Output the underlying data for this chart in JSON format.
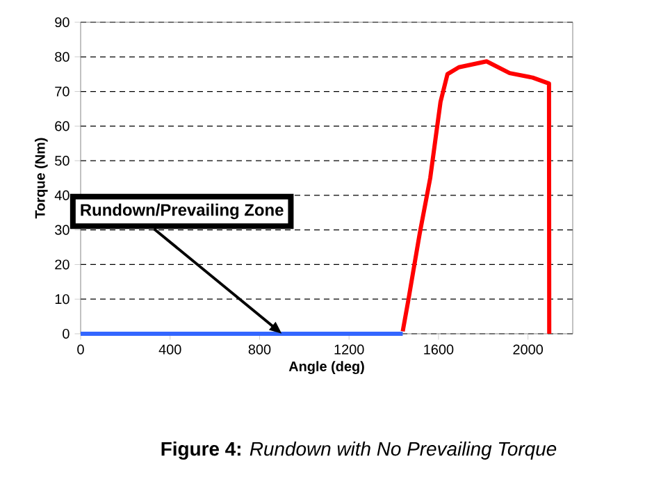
{
  "chart_data": {
    "type": "line",
    "xlabel": "Angle (deg)",
    "ylabel": "Torque (Nm)",
    "xlim": [
      0,
      2200
    ],
    "xticks": [
      0,
      400,
      800,
      1200,
      1600,
      2000
    ],
    "ylim": [
      0,
      90
    ],
    "yticks": [
      0,
      10,
      20,
      30,
      40,
      50,
      60,
      70,
      80,
      90
    ],
    "grid": "y",
    "line_style": "solid",
    "series": [
      {
        "color": "#3366ff",
        "x": [
          0,
          1440
        ],
        "values": [
          0,
          0
        ]
      },
      {
        "color": "#ff0000",
        "x": [
          1440,
          1464,
          1516,
          1563,
          1588,
          1609,
          1640,
          1691,
          1815,
          1918,
          2021,
          2094,
          2095
        ],
        "values": [
          0.7,
          9.3,
          29,
          45,
          57,
          67,
          75,
          77,
          78.7,
          75.3,
          74,
          72.3,
          0
        ]
      }
    ],
    "annotations": [
      {
        "text": "Rundown/Prevailing Zone",
        "x": 900,
        "y": 0
      },
      "**Figure 4:**  *Rundown with No Prevailing Torque*"
    ]
  }
}
